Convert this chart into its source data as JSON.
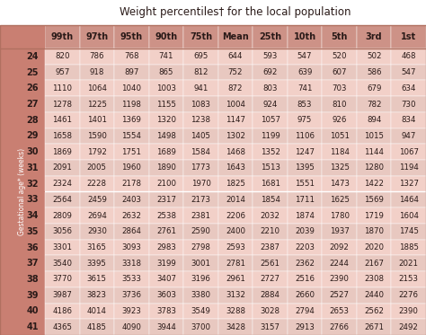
{
  "title": "Weight percentiles† for the local population",
  "col_headers": [
    "99th",
    "97th",
    "95th",
    "90th",
    "75th",
    "Mean",
    "25th",
    "10th",
    "5th",
    "3rd",
    "1st"
  ],
  "row_headers": [
    "24",
    "25",
    "26",
    "27",
    "28",
    "29",
    "30",
    "31",
    "32",
    "33",
    "34",
    "35",
    "36",
    "37",
    "38",
    "39",
    "40",
    "41"
  ],
  "row_label": "Gestational age* (weeks)",
  "data": [
    [
      820,
      786,
      768,
      741,
      695,
      644,
      593,
      547,
      520,
      502,
      468
    ],
    [
      957,
      918,
      897,
      865,
      812,
      752,
      692,
      639,
      607,
      586,
      547
    ],
    [
      1110,
      1064,
      1040,
      1003,
      941,
      872,
      803,
      741,
      703,
      679,
      634
    ],
    [
      1278,
      1225,
      1198,
      1155,
      1083,
      1004,
      924,
      853,
      810,
      782,
      730
    ],
    [
      1461,
      1401,
      1369,
      1320,
      1238,
      1147,
      1057,
      975,
      926,
      894,
      834
    ],
    [
      1658,
      1590,
      1554,
      1498,
      1405,
      1302,
      1199,
      1106,
      1051,
      1015,
      947
    ],
    [
      1869,
      1792,
      1751,
      1689,
      1584,
      1468,
      1352,
      1247,
      1184,
      1144,
      1067
    ],
    [
      2091,
      2005,
      1960,
      1890,
      1773,
      1643,
      1513,
      1395,
      1325,
      1280,
      1194
    ],
    [
      2324,
      2228,
      2178,
      2100,
      1970,
      1825,
      1681,
      1551,
      1473,
      1422,
      1327
    ],
    [
      2564,
      2459,
      2403,
      2317,
      2173,
      2014,
      1854,
      1711,
      1625,
      1569,
      1464
    ],
    [
      2809,
      2694,
      2632,
      2538,
      2381,
      2206,
      2032,
      1874,
      1780,
      1719,
      1604
    ],
    [
      3056,
      2930,
      2864,
      2761,
      2590,
      2400,
      2210,
      2039,
      1937,
      1870,
      1745
    ],
    [
      3301,
      3165,
      3093,
      2983,
      2798,
      2593,
      2387,
      2203,
      2092,
      2020,
      1885
    ],
    [
      3540,
      3395,
      3318,
      3199,
      3001,
      2781,
      2561,
      2362,
      2244,
      2167,
      2021
    ],
    [
      3770,
      3615,
      3533,
      3407,
      3196,
      2961,
      2727,
      2516,
      2390,
      2308,
      2153
    ],
    [
      3987,
      3823,
      3736,
      3603,
      3380,
      3132,
      2884,
      2660,
      2527,
      2440,
      2276
    ],
    [
      4186,
      4014,
      3923,
      3783,
      3549,
      3288,
      3028,
      2794,
      2653,
      2562,
      2390
    ],
    [
      4365,
      4185,
      4090,
      3944,
      3700,
      3428,
      3157,
      2913,
      2766,
      2671,
      2492
    ]
  ],
  "color_header_bg": "#cd9287",
  "color_label_col": "#c97f72",
  "color_row_odd": "#f2d0c8",
  "color_row_even": "#e8c8c0",
  "color_title_bg": "#ffffff",
  "color_header_title_bg": "#f5ddd8",
  "color_text": "#2a1a18",
  "color_white": "#ffffff",
  "color_border": "#b07060"
}
